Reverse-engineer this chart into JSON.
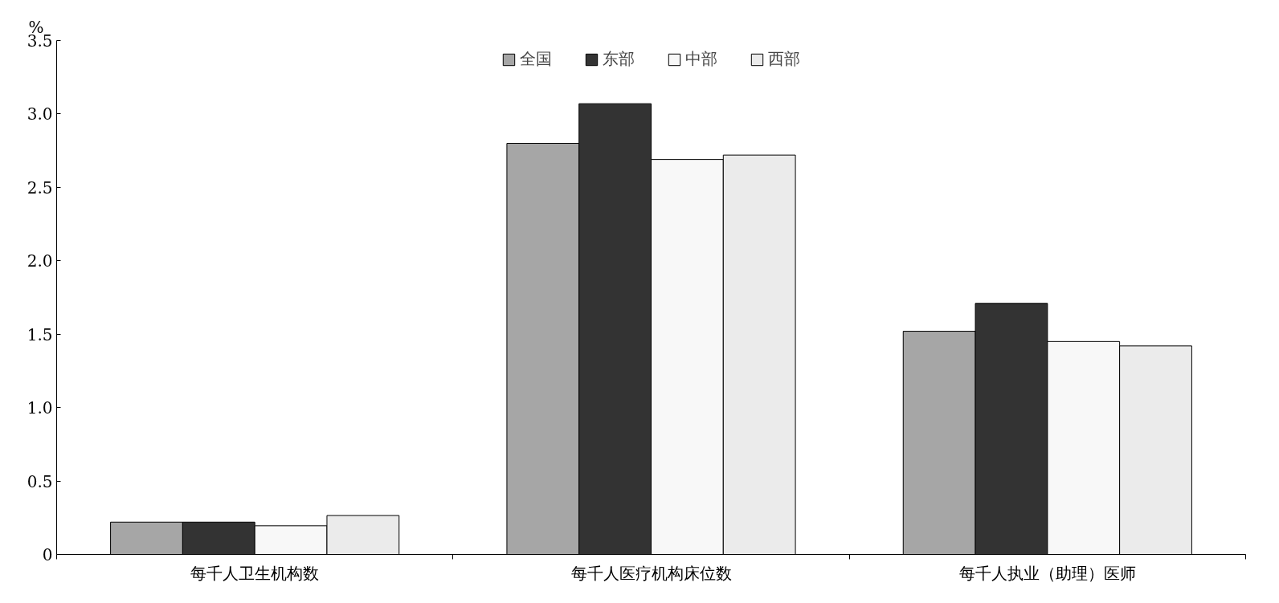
{
  "chart_data": {
    "type": "bar",
    "ylabel": "%",
    "categories": [
      "每千人卫生机构数",
      "每千人医疗机构床位数",
      "每千人执业（助理）医师"
    ],
    "series": [
      {
        "name": "全国",
        "color": "#a6a6a6",
        "values": [
          0.22,
          2.8,
          1.52
        ]
      },
      {
        "name": "东部",
        "color": "#333333",
        "values": [
          0.22,
          3.07,
          1.71
        ]
      },
      {
        "name": "中部",
        "color": "#f8f8f8",
        "values": [
          0.195,
          2.69,
          1.45
        ]
      },
      {
        "name": "西部",
        "color": "#ebebeb",
        "values": [
          0.265,
          2.72,
          1.42
        ]
      }
    ],
    "ylim": [
      0,
      3.5
    ],
    "yticks": [
      0,
      {
        "value": 0.5,
        "label": "0.5"
      },
      {
        "value": 1,
        "label": "1.0"
      },
      {
        "value": 1.5,
        "label": "1.5"
      },
      {
        "value": 2,
        "label": "2.0"
      },
      {
        "value": 2.5,
        "label": "2.5"
      },
      {
        "value": 3,
        "label": "3.0"
      },
      {
        "value": 3.5,
        "label": "3.5"
      }
    ],
    "grid": false,
    "legend": "top"
  }
}
